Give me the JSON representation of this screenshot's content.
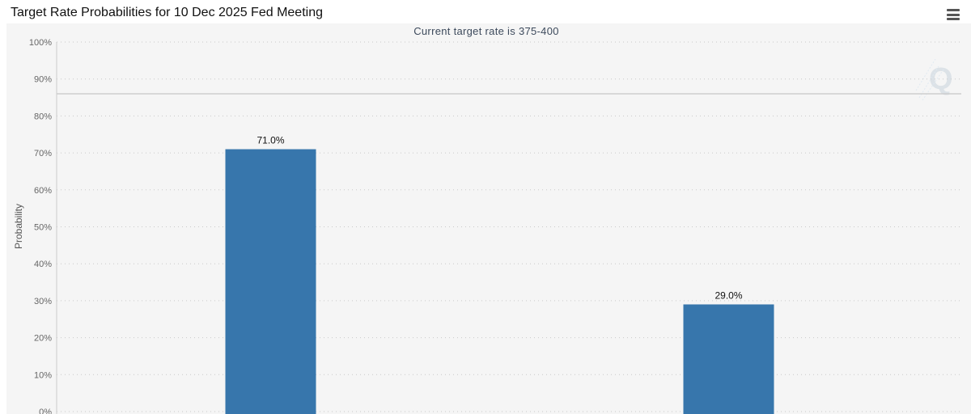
{
  "header": {
    "title": "Target Rate Probabilities for 10 Dec 2025 Fed Meeting",
    "menu_icon": "hamburger-menu-icon"
  },
  "watermark": {
    "letter": "Q"
  },
  "chart_data": {
    "type": "bar",
    "title": "Target Rate Probabilities for 10 Dec 2025 Fed Meeting",
    "subtitle": "Current target rate is 375-400",
    "xlabel": "",
    "ylabel": "Probability",
    "ylim": [
      0,
      100
    ],
    "yticks": [
      "0%",
      "10%",
      "20%",
      "30%",
      "40%",
      "50%",
      "60%",
      "70%",
      "80%",
      "90%",
      "100%"
    ],
    "categories": [
      "",
      ""
    ],
    "values": [
      71.0,
      29.0
    ],
    "data_labels": [
      "71.0%",
      "29.0%"
    ],
    "bar_color": "#3776ac",
    "grid": true,
    "legend": "none"
  }
}
